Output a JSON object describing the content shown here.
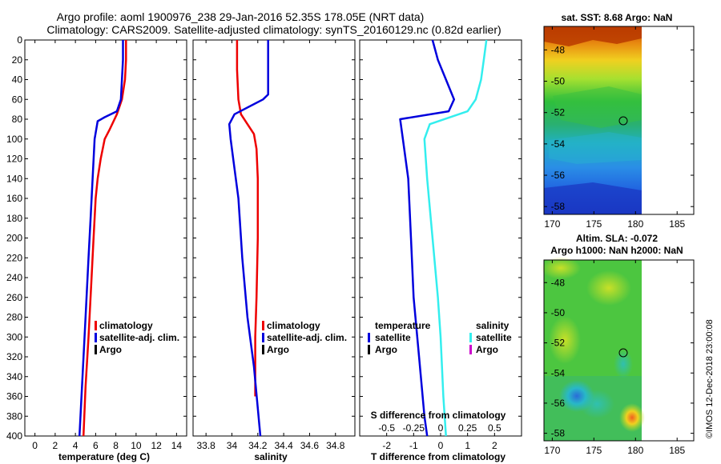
{
  "header": {
    "title_line1": "Argo profile: aoml 1900976_238 29-Jan-2016 52.35S 178.05E (NRT data)",
    "title_line2": "Climatology: CARS2009. Satellite-adjusted climatology: synTS_20160129.nc (0.82d earlier)"
  },
  "colors": {
    "climatology": "#ee0000",
    "satellite": "#0000dd",
    "argo": "#000000",
    "salinity_satellite": "#33eeee",
    "salinity_argo": "#cc00cc"
  },
  "chart_data": [
    {
      "id": "temperature",
      "type": "line",
      "xlabel": "temperature (deg C)",
      "ylabel": "",
      "xlim": [
        -1,
        15
      ],
      "ylim": [
        400,
        0
      ],
      "xticks": [
        "0",
        "2",
        "4",
        "6",
        "8",
        "10",
        "12",
        "14"
      ],
      "xtick_values": [
        0,
        2,
        4,
        6,
        8,
        10,
        12,
        14
      ],
      "yticks": [
        "0",
        "20",
        "40",
        "60",
        "80",
        "100",
        "120",
        "140",
        "160",
        "180",
        "200",
        "220",
        "240",
        "260",
        "280",
        "300",
        "320",
        "340",
        "360",
        "380",
        "400"
      ],
      "ytick_values": [
        0,
        20,
        40,
        60,
        80,
        100,
        120,
        140,
        160,
        180,
        200,
        220,
        240,
        260,
        280,
        300,
        320,
        340,
        360,
        380,
        400
      ],
      "legend": [
        "climatology",
        "satellite-adj. clim.",
        "Argo"
      ],
      "series": [
        {
          "name": "climatology",
          "color_key": "climatology",
          "points": [
            [
              9.0,
              0
            ],
            [
              9.0,
              20
            ],
            [
              8.9,
              40
            ],
            [
              8.6,
              60
            ],
            [
              8.1,
              75
            ],
            [
              7.4,
              90
            ],
            [
              6.9,
              100
            ],
            [
              6.5,
              120
            ],
            [
              6.2,
              140
            ],
            [
              6.0,
              160
            ],
            [
              5.8,
              200
            ],
            [
              5.6,
              240
            ],
            [
              5.3,
              300
            ],
            [
              5.0,
              350
            ],
            [
              4.8,
              400
            ]
          ]
        },
        {
          "name": "satellite-adj. clim.",
          "color_key": "satellite",
          "points": [
            [
              8.7,
              0
            ],
            [
              8.7,
              20
            ],
            [
              8.6,
              40
            ],
            [
              8.5,
              60
            ],
            [
              8.1,
              72
            ],
            [
              6.9,
              78
            ],
            [
              6.2,
              82
            ],
            [
              5.9,
              100
            ],
            [
              5.7,
              140
            ],
            [
              5.5,
              180
            ],
            [
              5.3,
              220
            ],
            [
              5.0,
              280
            ],
            [
              4.7,
              340
            ],
            [
              4.4,
              400
            ]
          ]
        }
      ]
    },
    {
      "id": "salinity",
      "type": "line",
      "xlabel": "salinity",
      "xlim": [
        33.7,
        34.95
      ],
      "ylim": [
        400,
        0
      ],
      "xticks": [
        "33.8",
        "34",
        "34.2",
        "34.4",
        "34.6",
        "34.8"
      ],
      "xtick_values": [
        33.8,
        34.0,
        34.2,
        34.4,
        34.6,
        34.8
      ],
      "legend": [
        "climatology",
        "satellite-adj. clim.",
        "Argo"
      ],
      "series": [
        {
          "name": "climatology",
          "color_key": "climatology",
          "points": [
            [
              34.04,
              0
            ],
            [
              34.04,
              30
            ],
            [
              34.05,
              60
            ],
            [
              34.07,
              75
            ],
            [
              34.12,
              85
            ],
            [
              34.17,
              95
            ],
            [
              34.19,
              110
            ],
            [
              34.2,
              140
            ],
            [
              34.2,
              200
            ],
            [
              34.19,
              260
            ],
            [
              34.18,
              300
            ],
            [
              34.18,
              360
            ]
          ]
        },
        {
          "name": "satellite-adj. clim.",
          "color_key": "satellite",
          "points": [
            [
              34.28,
              0
            ],
            [
              34.28,
              30
            ],
            [
              34.28,
              55
            ],
            [
              34.24,
              60
            ],
            [
              34.02,
              75
            ],
            [
              33.98,
              85
            ],
            [
              33.99,
              100
            ],
            [
              34.01,
              120
            ],
            [
              34.05,
              160
            ],
            [
              34.08,
              220
            ],
            [
              34.12,
              280
            ],
            [
              34.17,
              330
            ],
            [
              34.22,
              400
            ]
          ]
        }
      ]
    },
    {
      "id": "difference",
      "type": "line",
      "xlabel": "T difference from climatology",
      "top_label": "S difference from climatology",
      "xlim": [
        -3,
        3
      ],
      "ylim": [
        400,
        0
      ],
      "xticks": [
        "-2",
        "-1",
        "0",
        "1",
        "2"
      ],
      "xtick_values": [
        -2,
        -1,
        0,
        1,
        2
      ],
      "s_ticks": [
        "-0.5",
        "-0.25",
        "0",
        "0.25",
        "0.5"
      ],
      "s_tick_positions": [
        -2,
        -1,
        0,
        1,
        2
      ],
      "legend_temperature_title": "temperature",
      "legend_salinity_title": "salinity",
      "legend_entries": [
        "satellite",
        "Argo"
      ],
      "series": [
        {
          "name": "temperature satellite",
          "color_key": "satellite",
          "points": [
            [
              -0.3,
              0
            ],
            [
              -0.1,
              20
            ],
            [
              0.2,
              40
            ],
            [
              0.5,
              60
            ],
            [
              0.3,
              72
            ],
            [
              -1.5,
              80
            ],
            [
              -1.4,
              100
            ],
            [
              -1.2,
              140
            ],
            [
              -1.1,
              200
            ],
            [
              -1.0,
              260
            ],
            [
              -0.8,
              320
            ],
            [
              -0.6,
              380
            ],
            [
              -0.5,
              400
            ]
          ]
        },
        {
          "name": "salinity satellite",
          "color_key": "salinity_satellite",
          "points": [
            [
              1.7,
              0
            ],
            [
              1.6,
              20
            ],
            [
              1.5,
              40
            ],
            [
              1.3,
              60
            ],
            [
              1.0,
              72
            ],
            [
              -0.4,
              85
            ],
            [
              -0.6,
              100
            ],
            [
              -0.5,
              140
            ],
            [
              -0.3,
              200
            ],
            [
              -0.1,
              260
            ],
            [
              0.0,
              300
            ],
            [
              0.1,
              360
            ],
            [
              0.2,
              400
            ]
          ]
        }
      ]
    },
    {
      "id": "sst-map",
      "type": "heatmap",
      "title": "sat. SST: 8.68 Argo: NaN",
      "xlim": [
        169,
        187
      ],
      "ylim": [
        -58.5,
        -46.5
      ],
      "xticks": [
        "170",
        "175",
        "180",
        "185"
      ],
      "xtick_values": [
        170,
        175,
        180,
        185
      ],
      "yticks": [
        "-48",
        "-50",
        "-52",
        "-54",
        "-56",
        "-58"
      ],
      "ytick_values": [
        -48,
        -50,
        -52,
        -54,
        -56,
        -58
      ],
      "data_extent_lon": [
        169.5,
        180
      ],
      "marker": {
        "lon": 178.05,
        "lat": -52.35
      }
    },
    {
      "id": "sla-map",
      "type": "heatmap",
      "title": "Altim. SLA: -0.072",
      "subtitle": "Argo h1000: NaN h2000: NaN",
      "xlim": [
        169,
        187
      ],
      "ylim": [
        -58.5,
        -46.5
      ],
      "xticks": [
        "170",
        "175",
        "180",
        "185"
      ],
      "xtick_values": [
        170,
        175,
        180,
        185
      ],
      "yticks": [
        "-48",
        "-50",
        "-52",
        "-54",
        "-56",
        "-58"
      ],
      "ytick_values": [
        -48,
        -50,
        -52,
        -54,
        -56,
        -58
      ],
      "data_extent_lon": [
        169.5,
        180
      ],
      "marker": {
        "lon": 178.05,
        "lat": -52.35
      }
    }
  ],
  "watermark": "©IMOS 12-Dec-2018 23:00:08"
}
